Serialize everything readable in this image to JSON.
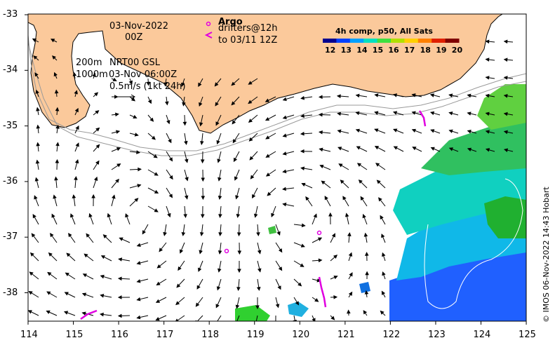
{
  "map": {
    "longitude_ticks": [
      "114",
      "115",
      "116",
      "117",
      "118",
      "119",
      "120",
      "121",
      "122",
      "123",
      "124",
      "125"
    ],
    "latitude_ticks": [
      "-33",
      "-34",
      "-35",
      "-36",
      "-37",
      "-38"
    ],
    "land_color": "#fbc99b",
    "coast_color": "#000000",
    "isobath_color": "#9a9a9a"
  },
  "annotations": {
    "date": "03-Nov-2022",
    "time": "00Z",
    "depth_200": "200m",
    "depth_1000": "1000m",
    "product": "NRT00 GSL",
    "product_time": "03-Nov 06:00Z",
    "scale_vector": "0.5m/s (1kt 24h)",
    "argo_label": "Argo",
    "drifters_label": "drifters@12h",
    "drifters_to": "to 03/11 12Z",
    "argo_marker_color": "#e000e0"
  },
  "colorbar": {
    "title": "4h comp, p50, All Sats",
    "labels": [
      "12",
      "13",
      "14",
      "15",
      "16",
      "17",
      "18",
      "19",
      "20"
    ],
    "colors": [
      "#00008f",
      "#0040ff",
      "#00a0ff",
      "#00e0c0",
      "#40e040",
      "#b0e000",
      "#ffd000",
      "#ff8000",
      "#e02000",
      "#800000"
    ]
  },
  "credit": "© IMOS 06-Nov-2022 14:43 Hobart"
}
